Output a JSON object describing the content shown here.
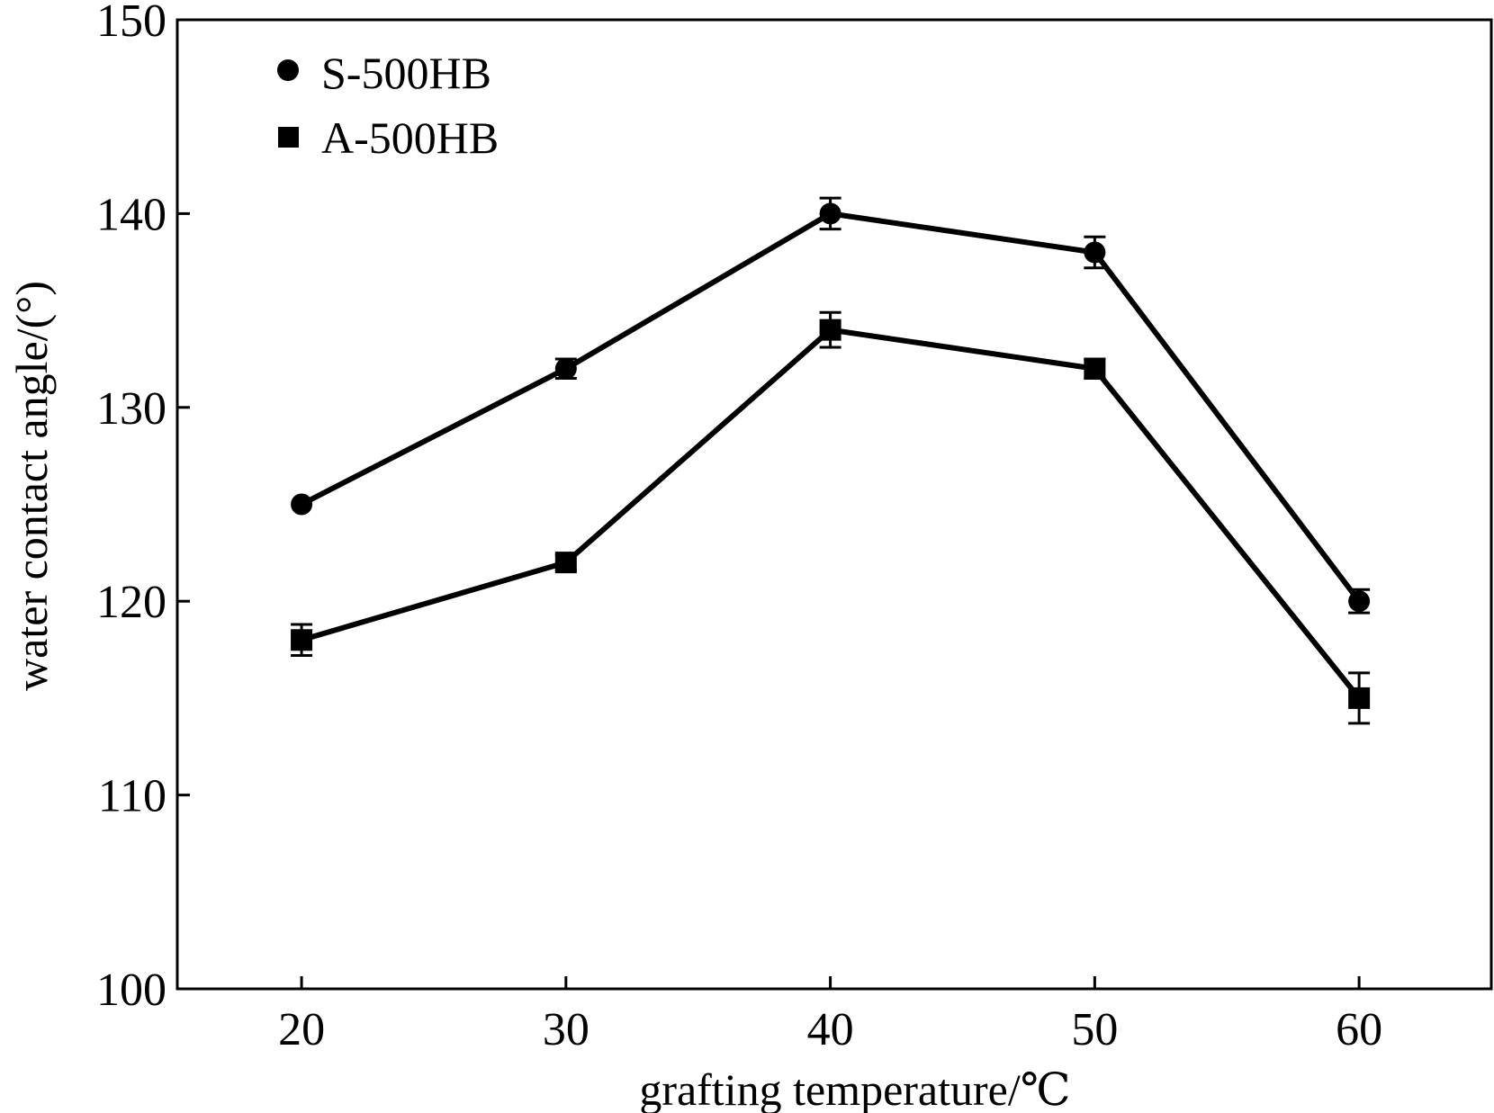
{
  "chart_data": {
    "type": "line",
    "title": "",
    "xlabel": "grafting temperature/℃",
    "ylabel": "water contact angle/(°)",
    "x": [
      20,
      30,
      40,
      50,
      60
    ],
    "xticks": [
      "20",
      "30",
      "40",
      "50",
      "60"
    ],
    "xlim": [
      15.3,
      65
    ],
    "ylim": [
      100,
      150
    ],
    "yticks": [
      "100",
      "110",
      "120",
      "130",
      "140",
      "150"
    ],
    "grid": false,
    "legend_position": "top-left",
    "series": [
      {
        "name": "S-500HB",
        "marker": "circle",
        "values": [
          125,
          132,
          140,
          138,
          120
        ],
        "errors": [
          0,
          0.5,
          0.8,
          0.8,
          0.6
        ]
      },
      {
        "name": "A-500HB",
        "marker": "square",
        "values": [
          118,
          122,
          134,
          132,
          115
        ],
        "errors": [
          0.8,
          0.4,
          0.9,
          0.5,
          1.3
        ]
      }
    ],
    "colors": {
      "line": "#000000",
      "marker": "#000000",
      "background": "#ffffff"
    }
  }
}
